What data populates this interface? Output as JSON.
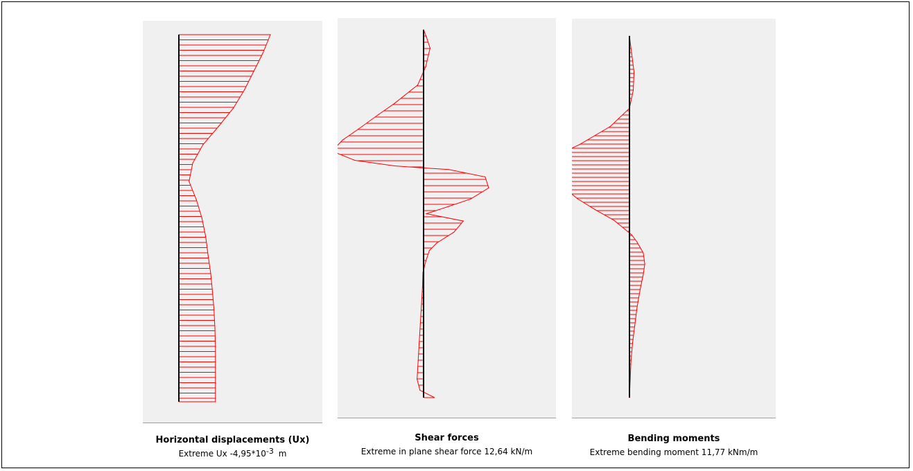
{
  "figure": {
    "panels": [
      {
        "title": "Horizontal displacements (Ux)",
        "extreme_label": "Extreme Ux -4,95*10",
        "extreme_exponent": "-3",
        "extreme_unit": "m"
      },
      {
        "title": "Shear forces",
        "extreme_label": "Extreme in plane shear force 12,64 kN/m"
      },
      {
        "title": "Bending moments",
        "extreme_label": "Extreme bending moment 11,77  kNm/m"
      }
    ]
  },
  "chart_data": [
    {
      "type": "area",
      "title": "Horizontal displacements (Ux)",
      "units": "10^-3 m",
      "extreme": -4.95,
      "axis_direction": "depth (top to bottom)",
      "series_color": "#ff0000",
      "x": [
        0,
        0.05,
        0.1,
        0.15,
        0.2,
        0.25,
        0.3,
        0.35,
        0.4,
        0.45,
        0.5,
        0.55,
        0.6,
        0.65,
        0.7,
        0.75,
        0.8,
        0.85,
        0.9,
        0.95,
        1
      ],
      "values": [
        -4.95,
        -4.55,
        -4.05,
        -3.55,
        -2.95,
        -2.15,
        -1.3,
        -0.75,
        -0.55,
        -0.95,
        -1.25,
        -1.45,
        -1.58,
        -1.72,
        -1.82,
        -1.9,
        -1.95,
        -1.98,
        -1.98,
        -1.98,
        -1.98
      ]
    },
    {
      "type": "area",
      "title": "Shear forces",
      "units": "kN/m",
      "extreme": 12.64,
      "axis_direction": "depth (top to bottom)",
      "series_color": "#ff0000",
      "x": [
        0,
        0.02,
        0.05,
        0.1,
        0.15,
        0.2,
        0.23,
        0.27,
        0.3,
        0.33,
        0.355,
        0.37,
        0.375,
        0.38,
        0.4,
        0.43,
        0.46,
        0.48,
        0.5,
        0.52,
        0.55,
        0.58,
        0.6,
        0.63,
        0.66,
        0.7,
        0.75,
        0.8,
        0.85,
        0.9,
        0.95,
        0.98,
        1
      ],
      "values": [
        0,
        -0.4,
        -0.9,
        -0.3,
        0.8,
        4.0,
        6.2,
        9.0,
        11.2,
        12.64,
        9.5,
        4.0,
        0.5,
        -3.5,
        -8.5,
        -9.0,
        -6.5,
        -3.5,
        -0.4,
        -5.5,
        -4.2,
        -1.8,
        -0.8,
        -0.3,
        0.1,
        0.15,
        0.3,
        0.45,
        0.6,
        0.75,
        0.9,
        0.5,
        -1.5
      ]
    },
    {
      "type": "area",
      "title": "Bending moments",
      "units": "kNm/m",
      "extreme": 11.77,
      "axis_direction": "depth (top to bottom)",
      "series_color": "#ff0000",
      "x": [
        0,
        0.05,
        0.1,
        0.15,
        0.2,
        0.25,
        0.3,
        0.33,
        0.36,
        0.39,
        0.42,
        0.45,
        0.48,
        0.51,
        0.55,
        0.57,
        0.6,
        0.63,
        0.66,
        0.7,
        0.75,
        0.8,
        0.85,
        0.9,
        0.95,
        1
      ],
      "values": [
        0,
        -0.3,
        -0.6,
        -0.5,
        0,
        2.5,
        6.5,
        9.5,
        11.77,
        10.5,
        8.5,
        6.8,
        4.5,
        2.0,
        -0.3,
        -1.0,
        -1.8,
        -2.0,
        -1.8,
        -1.4,
        -1.0,
        -0.7,
        -0.4,
        -0.2,
        -0.1,
        0
      ]
    }
  ]
}
